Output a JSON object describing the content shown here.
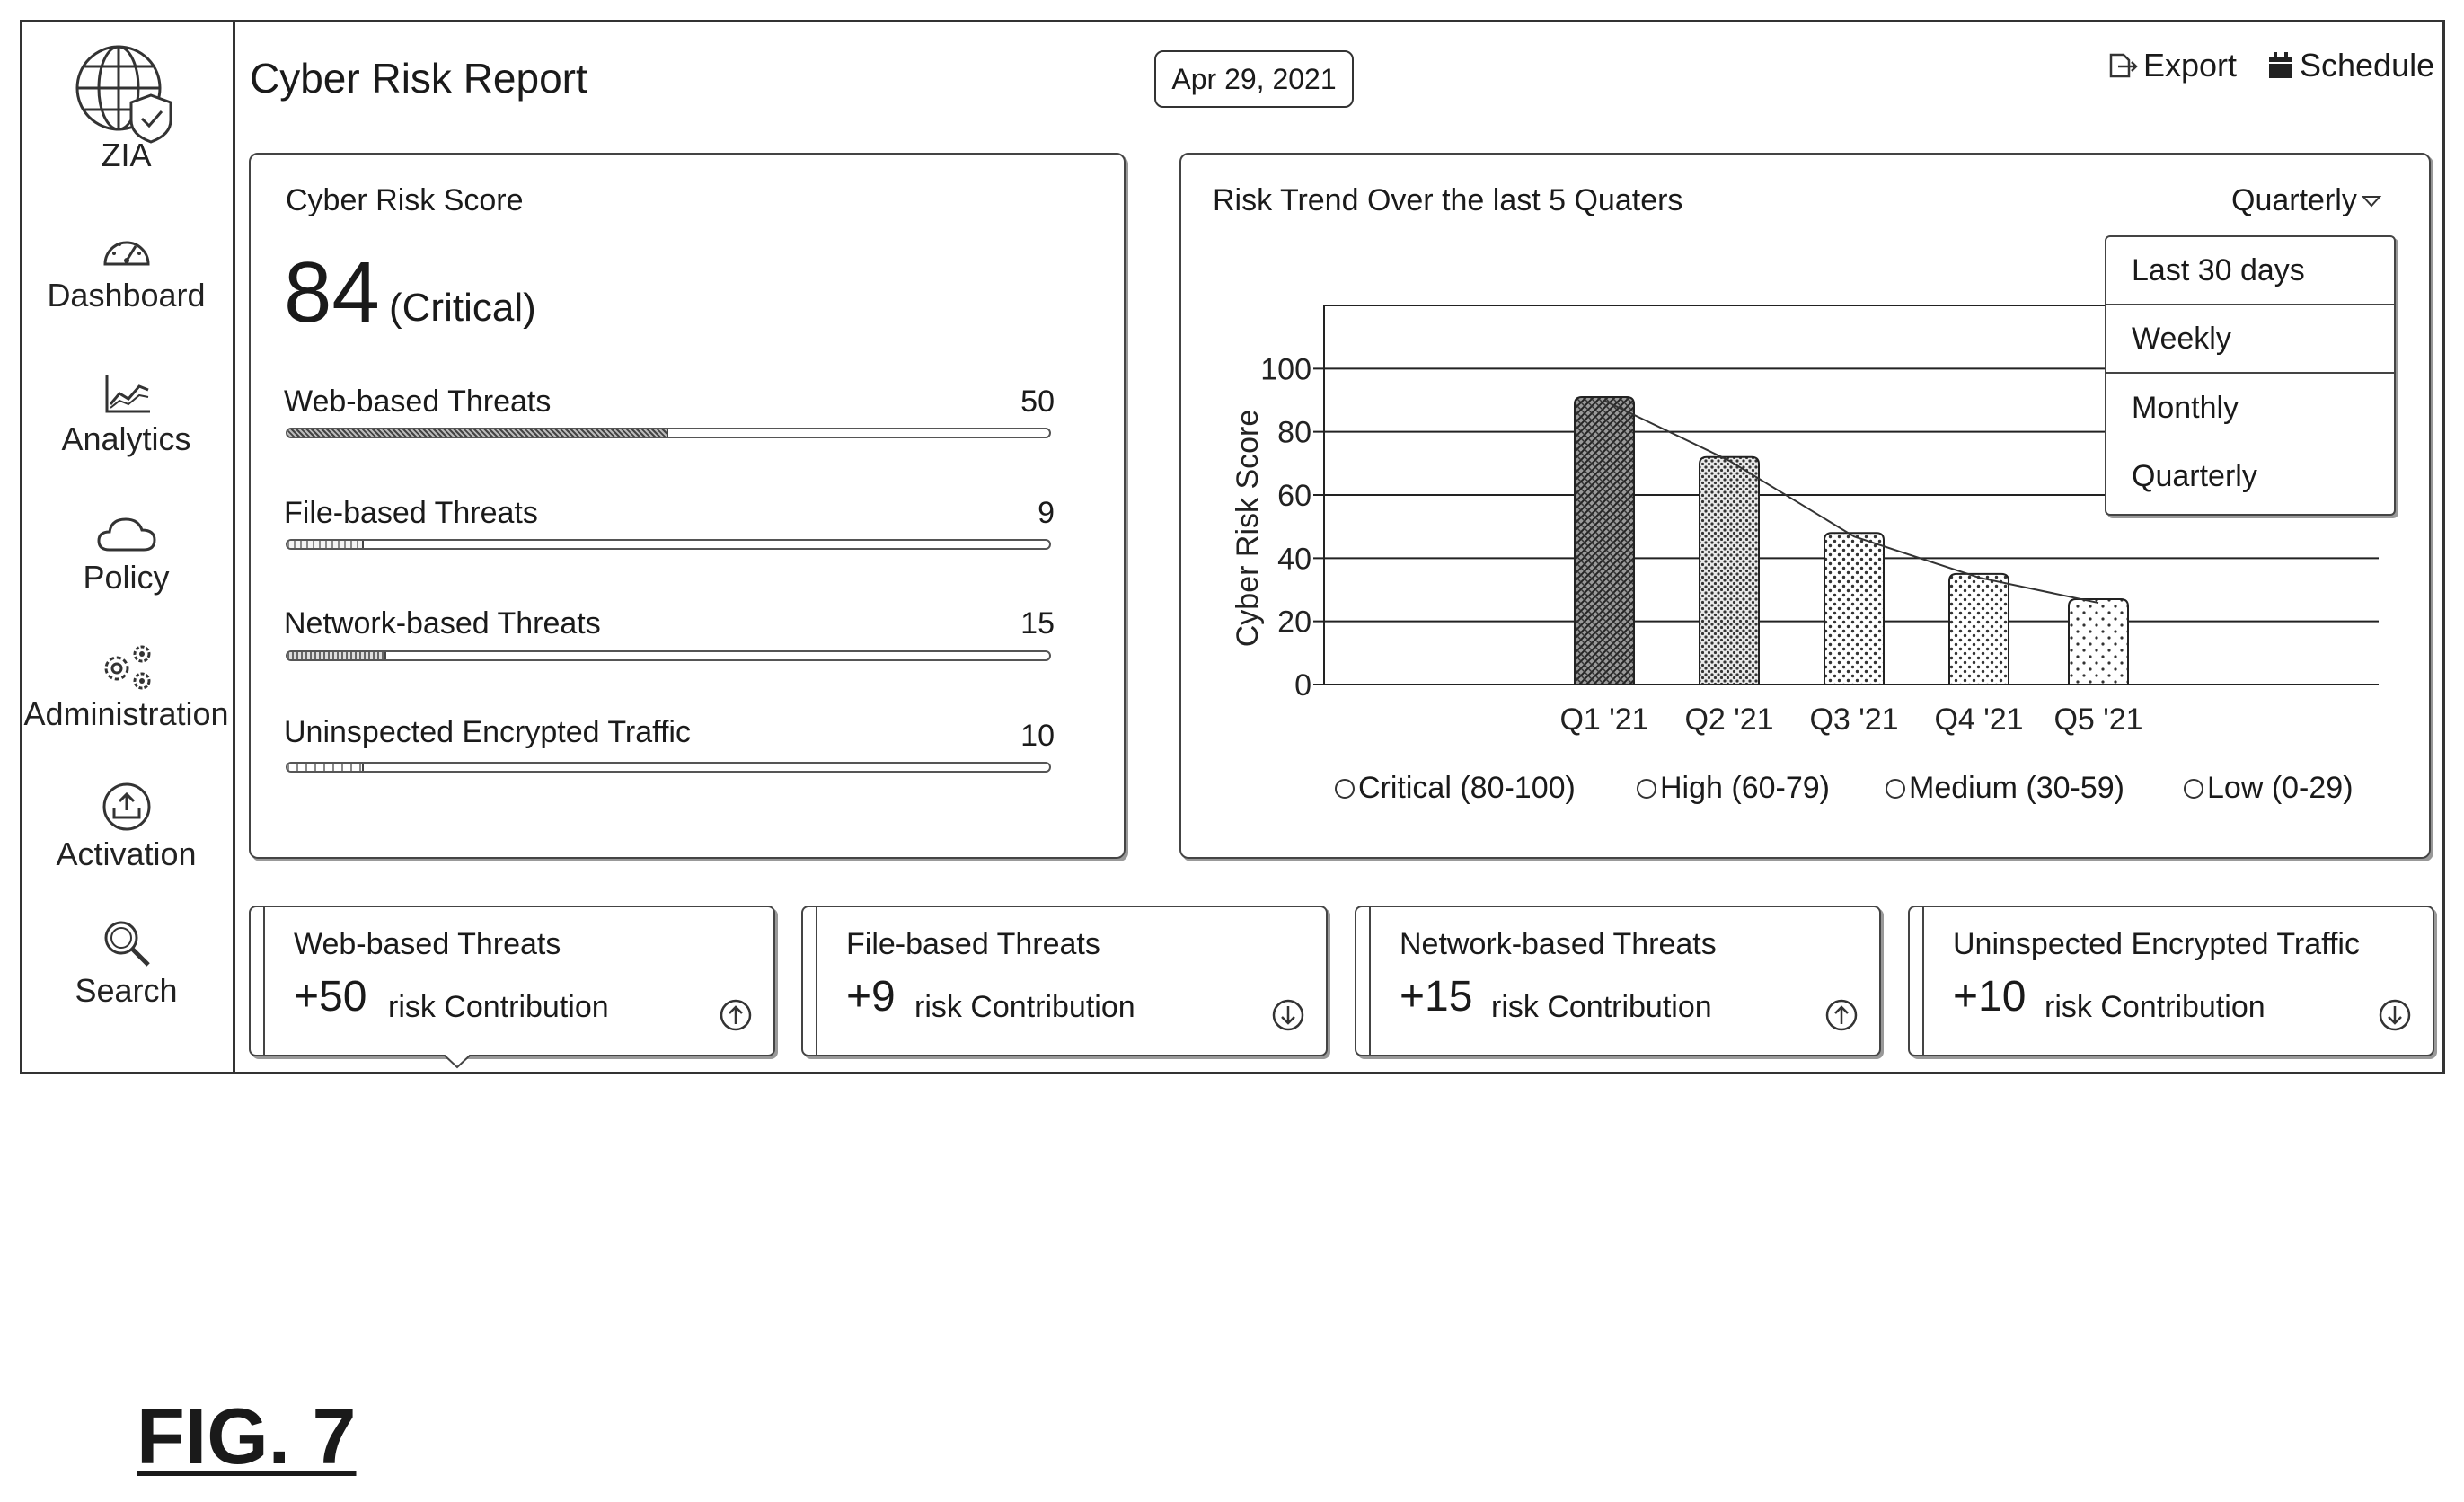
{
  "sidebar": {
    "app_label": "ZIA",
    "items": [
      {
        "label": "Dashboard",
        "icon": "gauge-icon"
      },
      {
        "label": "Analytics",
        "icon": "chart-icon"
      },
      {
        "label": "Policy",
        "icon": "cloud-icon"
      },
      {
        "label": "Administration",
        "icon": "gears-icon"
      },
      {
        "label": "Activation",
        "icon": "upload-icon"
      },
      {
        "label": "Search",
        "icon": "search-icon"
      }
    ]
  },
  "header": {
    "title": "Cyber Risk Report",
    "date": "Apr 29, 2021",
    "export_label": "Export",
    "schedule_label": "Schedule"
  },
  "score_panel": {
    "label": "Cyber Risk Score",
    "score": "84",
    "severity": "(Critical)",
    "threats": [
      {
        "label": "Web-based Threats",
        "value": "50",
        "fraction": 0.5
      },
      {
        "label": "File-based Threats",
        "value": "9",
        "fraction": 0.1
      },
      {
        "label": "Network-based Threats",
        "value": "15",
        "fraction": 0.13
      },
      {
        "label": "Uninspected Encrypted Traffic",
        "value": "10",
        "fraction": 0.1
      }
    ]
  },
  "trend_panel": {
    "title": "Risk Trend Over the last 5 Quaters",
    "period_selected": "Quarterly",
    "period_options": [
      "Last 30 days",
      "Weekly",
      "Monthly",
      "Quarterly"
    ],
    "legend": [
      "Critical (80-100)",
      "High (60-79)",
      "Medium (30-59)",
      "Low (0-29)"
    ]
  },
  "chart_data": {
    "type": "bar",
    "categories": [
      "Q1 '21",
      "Q2 '21",
      "Q3 '21",
      "Q4 '21",
      "Q5 '21"
    ],
    "values": [
      91,
      72,
      48,
      35,
      27
    ],
    "ylabel": "Cyber Risk Score",
    "yticks": [
      0,
      20,
      40,
      60,
      80,
      100
    ],
    "ylim": [
      0,
      120
    ],
    "grid": true,
    "trend_line": true,
    "patterns": [
      "dense",
      "medium",
      "light",
      "light",
      "sparse"
    ]
  },
  "cards": [
    {
      "title": "Web-based Threats",
      "value": "+50",
      "unit": "risk Contribution",
      "direction": "up"
    },
    {
      "title": "File-based Threats",
      "value": "+9",
      "unit": "risk Contribution",
      "direction": "down"
    },
    {
      "title": "Network-based Threats",
      "value": "+15",
      "unit": "risk Contribution",
      "direction": "up"
    },
    {
      "title": "Uninspected Encrypted Traffic",
      "value": "+10",
      "unit": "risk Contribution",
      "direction": "down"
    }
  ],
  "figure_label": "FIG. 7"
}
